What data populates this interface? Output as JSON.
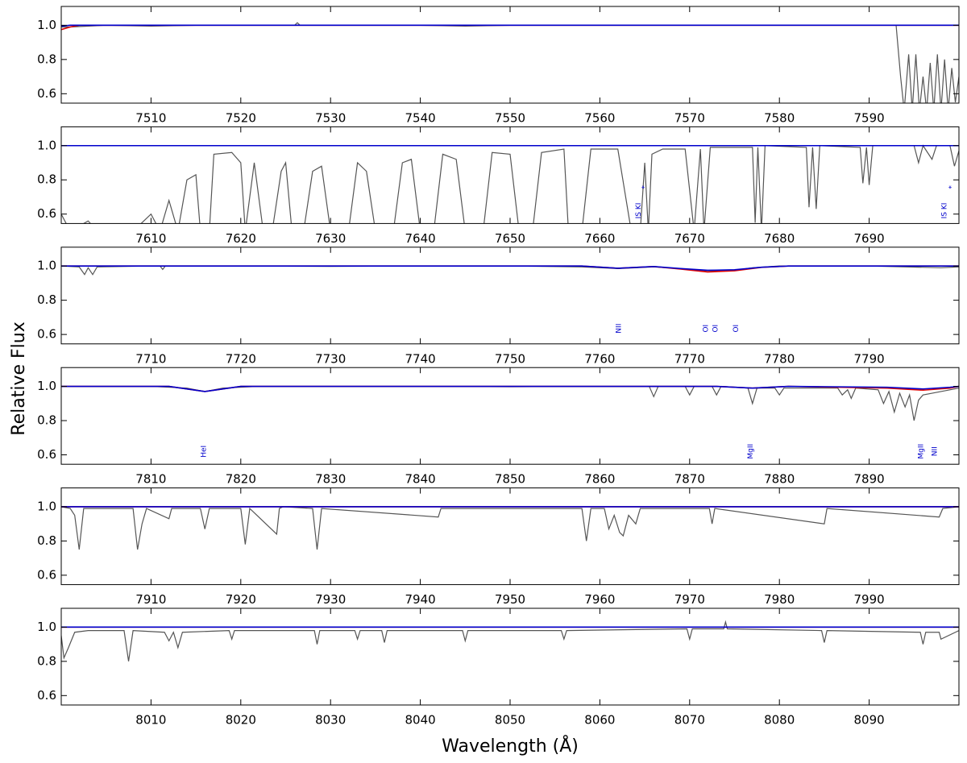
{
  "figure": {
    "xlabel": "Wavelength (Å)",
    "ylabel": "Relative Flux"
  },
  "chart_data": [
    {
      "type": "line",
      "xlim": [
        7500,
        7600
      ],
      "ylim": [
        0.545,
        1.11
      ],
      "xticks": [
        7510,
        7520,
        7530,
        7540,
        7550,
        7560,
        7570,
        7580,
        7590
      ],
      "yticks": [
        0.6,
        0.8,
        {
          "value": 1,
          "label": "1.0"
        }
      ],
      "series": [
        {
          "color": "#555555",
          "x": [
            7500,
            7501,
            7505,
            7510,
            7515,
            7520,
            7525,
            7526,
            7526.3,
            7526.6,
            7530,
            7535,
            7540,
            7545,
            7550,
            7555,
            7560,
            7565,
            7570,
            7575,
            7580,
            7585,
            7590,
            7593,
            7593.5,
            7593.9,
            7594.4,
            7594.8,
            7595.2,
            7595.6,
            7596,
            7596.4,
            7596.8,
            7597.2,
            7597.6,
            7598,
            7598.4,
            7598.8,
            7599.2,
            7599.6,
            7600
          ],
          "values": [
            0.99,
            0.99,
            1,
            0.995,
            1,
            1,
            1,
            1,
            1.015,
            1,
            1,
            1,
            1,
            0.995,
            1,
            1,
            1,
            1,
            1,
            1,
            1,
            1,
            1,
            1,
            0.7,
            0.5,
            0.83,
            0.5,
            0.83,
            0.5,
            0.7,
            0.5,
            0.78,
            0.5,
            0.83,
            0.5,
            0.8,
            0.5,
            0.75,
            0.55,
            0.7
          ]
        },
        {
          "color": "#e00000",
          "x": [
            7500,
            7501,
            7502,
            7600
          ],
          "values": [
            0.975,
            0.99,
            1,
            1
          ]
        },
        {
          "color": "#0000cc",
          "x": [
            7500,
            7501,
            7600
          ],
          "values": [
            0.995,
            1,
            1
          ]
        }
      ],
      "annotations": []
    },
    {
      "type": "line",
      "xlim": [
        7600,
        7700
      ],
      "ylim": [
        0.545,
        1.11
      ],
      "xticks": [
        7610,
        7620,
        7630,
        7640,
        7650,
        7660,
        7670,
        7680,
        7690
      ],
      "yticks": [
        0.6,
        0.8,
        {
          "value": 1,
          "label": "1.0"
        }
      ],
      "series": [
        {
          "color": "#555555",
          "x": [
            7600,
            7601,
            7603,
            7604,
            7608,
            7610,
            7611,
            7612,
            7613,
            7614,
            7615,
            7615.5,
            7616.5,
            7617,
            7619,
            7620,
            7620.5,
            7621.5,
            7622.5,
            7623.5,
            7624.5,
            7625,
            7625.7,
            7627,
            7628,
            7629,
            7630,
            7632,
            7633,
            7634,
            7635,
            7637,
            7638,
            7639,
            7640,
            7641.5,
            7642.5,
            7644,
            7645,
            7647,
            7648,
            7650,
            7651,
            7652.5,
            7653.5,
            7656,
            7656.5,
            7658,
            7659,
            7662,
            7663.5,
            7664.5,
            7665,
            7665.4,
            7665.8,
            7667,
            7669.5,
            7670.5,
            7671.2,
            7671.6,
            7672.3,
            7677,
            7677.3,
            7677.6,
            7678,
            7678.4,
            7683,
            7683.3,
            7683.7,
            7684.1,
            7684.5,
            7689,
            7689.3,
            7689.7,
            7690,
            7690.4,
            7695,
            7695.5,
            7696,
            7697,
            7697.5,
            7699,
            7699.5,
            7700
          ],
          "values": [
            0.6,
            0.5,
            0.56,
            0.5,
            0.5,
            0.6,
            0.5,
            0.68,
            0.5,
            0.8,
            0.83,
            0.5,
            0.5,
            0.95,
            0.96,
            0.9,
            0.5,
            0.9,
            0.5,
            0.5,
            0.85,
            0.9,
            0.5,
            0.5,
            0.85,
            0.88,
            0.5,
            0.5,
            0.9,
            0.85,
            0.5,
            0.5,
            0.9,
            0.92,
            0.5,
            0.5,
            0.95,
            0.92,
            0.5,
            0.5,
            0.96,
            0.95,
            0.5,
            0.5,
            0.96,
            0.98,
            0.5,
            0.5,
            0.98,
            0.98,
            0.5,
            0.5,
            0.9,
            0.5,
            0.95,
            0.98,
            0.98,
            0.5,
            0.98,
            0.5,
            0.99,
            0.99,
            0.55,
            0.99,
            0.5,
            1,
            0.99,
            0.64,
            0.99,
            0.63,
            1,
            0.99,
            0.78,
            0.99,
            0.77,
            1,
            1,
            0.9,
            1,
            0.92,
            1,
            1,
            0.88,
            0.97
          ]
        },
        {
          "color": "#e00000",
          "x": [
            7600,
            7700
          ],
          "values": [
            1,
            1
          ]
        },
        {
          "color": "#0000cc",
          "x": [
            7600,
            7700
          ],
          "values": [
            1,
            1
          ]
        }
      ],
      "annotations": [
        {
          "text": "IS KI",
          "x": 7664.3,
          "y": 0.62
        },
        {
          "text": "*",
          "x": 7665.0,
          "y": 0.757
        },
        {
          "text": "IS KI",
          "x": 7698.4,
          "y": 0.62
        },
        {
          "text": "*",
          "x": 7699.2,
          "y": 0.757
        }
      ]
    },
    {
      "type": "line",
      "xlim": [
        7700,
        7800
      ],
      "ylim": [
        0.545,
        1.11
      ],
      "xticks": [
        7710,
        7720,
        7730,
        7740,
        7750,
        7760,
        7770,
        7780,
        7790
      ],
      "yticks": [
        0.6,
        0.8,
        {
          "value": 1,
          "label": "1.0"
        }
      ],
      "series": [
        {
          "color": "#555555",
          "x": [
            7700,
            7702,
            7702.6,
            7703,
            7703.5,
            7704,
            7710,
            7711,
            7711.3,
            7711.6,
            7720,
            7730,
            7740,
            7750,
            7758,
            7762,
            7766,
            7769,
            7771,
            7773,
            7775,
            7777,
            7780,
            7790,
            7798,
            7800
          ],
          "values": [
            1,
            0.995,
            0.95,
            0.99,
            0.95,
            0.995,
            1,
            1,
            0.98,
            1,
            1,
            0.998,
            1,
            1,
            0.995,
            0.985,
            0.995,
            0.985,
            0.975,
            0.97,
            0.975,
            0.99,
            1,
            1,
            0.99,
            0.995
          ]
        },
        {
          "color": "#e00000",
          "x": [
            7700,
            7758,
            7762,
            7766,
            7769,
            7772,
            7775,
            7778,
            7781,
            7800
          ],
          "values": [
            1,
            1,
            0.987,
            0.997,
            0.982,
            0.965,
            0.972,
            0.992,
            1,
            1
          ]
        },
        {
          "color": "#0000cc",
          "x": [
            7700,
            7758,
            7762,
            7766,
            7769,
            7772,
            7775,
            7778,
            7781,
            7800
          ],
          "values": [
            1,
            1,
            0.987,
            0.997,
            0.985,
            0.975,
            0.978,
            0.993,
            1,
            1
          ]
        }
      ],
      "annotations": [
        {
          "text": "NII",
          "x": 7762.1,
          "y": 0.635
        },
        {
          "text": "OI",
          "x": 7771.8,
          "y": 0.635
        },
        {
          "text": "OI",
          "x": 7772.9,
          "y": 0.635
        },
        {
          "text": "OI",
          "x": 7775.2,
          "y": 0.635
        }
      ]
    },
    {
      "type": "line",
      "xlim": [
        7800,
        7900
      ],
      "ylim": [
        0.545,
        1.11
      ],
      "xticks": [
        7810,
        7820,
        7830,
        7840,
        7850,
        7860,
        7870,
        7880,
        7890
      ],
      "yticks": [
        0.6,
        0.8,
        {
          "value": 1,
          "label": "1.0"
        }
      ],
      "series": [
        {
          "color": "#555555",
          "x": [
            7800,
            7810,
            7814,
            7816,
            7818,
            7822,
            7830,
            7840,
            7850,
            7860,
            7865.5,
            7866,
            7866.5,
            7869.5,
            7870,
            7870.5,
            7872.5,
            7873,
            7873.5,
            7876.5,
            7877,
            7877.5,
            7879.5,
            7880,
            7880.5,
            7886.5,
            7887,
            7887.6,
            7888,
            7888.5,
            7891,
            7891.6,
            7892.2,
            7892.8,
            7893.4,
            7894,
            7894.5,
            7895,
            7895.5,
            7896,
            7897,
            7900
          ],
          "values": [
            1,
            1,
            0.99,
            0.97,
            0.99,
            1,
            1,
            1,
            0.998,
            1,
            1,
            0.94,
            1,
            1,
            0.95,
            1,
            1,
            0.95,
            1,
            0.99,
            0.9,
            0.99,
            0.99,
            0.95,
            0.99,
            0.99,
            0.95,
            0.98,
            0.93,
            0.99,
            0.98,
            0.9,
            0.97,
            0.85,
            0.96,
            0.88,
            0.95,
            0.8,
            0.92,
            0.95,
            0.96,
            0.99
          ]
        },
        {
          "color": "#e00000",
          "x": [
            7800,
            7812,
            7816,
            7820,
            7873,
            7877,
            7881,
            7892,
            7896,
            7899,
            7900
          ],
          "values": [
            1,
            1,
            0.97,
            1,
            1,
            0.99,
            1,
            0.99,
            0.978,
            0.99,
            1
          ]
        },
        {
          "color": "#0000cc",
          "x": [
            7800,
            7812,
            7816,
            7820,
            7873,
            7877,
            7881,
            7892,
            7896,
            7899,
            7900
          ],
          "values": [
            1,
            1,
            0.97,
            1,
            1,
            0.99,
            1,
            0.995,
            0.985,
            0.995,
            1
          ]
        }
      ],
      "annotations": [
        {
          "text": "HeI",
          "x": 7815.9,
          "y": 0.62
        },
        {
          "text": "MgII",
          "x": 7876.8,
          "y": 0.62
        },
        {
          "text": "MgII",
          "x": 7895.8,
          "y": 0.62
        },
        {
          "text": "NII",
          "x": 7897.3,
          "y": 0.62
        }
      ]
    },
    {
      "type": "line",
      "xlim": [
        7900,
        8000
      ],
      "ylim": [
        0.545,
        1.11
      ],
      "xticks": [
        7910,
        7920,
        7930,
        7940,
        7950,
        7960,
        7970,
        7980,
        7990
      ],
      "yticks": [
        0.6,
        0.8,
        {
          "value": 1,
          "label": "1.0"
        }
      ],
      "series": [
        {
          "color": "#555555",
          "x": [
            7900,
            7901,
            7901.5,
            7902,
            7902.5,
            7908,
            7908.5,
            7909,
            7909.5,
            7912,
            7912.3,
            7915.5,
            7916,
            7916.5,
            7920,
            7920.5,
            7921,
            7924,
            7924.3,
            7924.7,
            7928,
            7928.5,
            7929,
            7942,
            7942.3,
            7958,
            7958.5,
            7959,
            7960.5,
            7961,
            7961.6,
            7962.2,
            7962.6,
            7963.2,
            7964,
            7964.5,
            7972.2,
            7972.5,
            7972.8,
            7985,
            7985.3,
            7997.8,
            7998.2,
            8000
          ],
          "values": [
            1,
            0.99,
            0.95,
            0.75,
            0.99,
            0.99,
            0.75,
            0.9,
            0.99,
            0.93,
            0.99,
            0.99,
            0.87,
            0.99,
            0.99,
            0.78,
            0.99,
            0.84,
            0.99,
            1,
            0.99,
            0.75,
            0.99,
            0.94,
            0.99,
            0.99,
            0.8,
            0.99,
            0.99,
            0.87,
            0.95,
            0.85,
            0.83,
            0.95,
            0.9,
            0.99,
            0.99,
            0.9,
            0.99,
            0.9,
            0.99,
            0.94,
            0.99,
            1
          ]
        },
        {
          "color": "#e00000",
          "x": [
            7900,
            8000
          ],
          "values": [
            1,
            1
          ]
        },
        {
          "color": "#0000cc",
          "x": [
            7900,
            8000
          ],
          "values": [
            1,
            1
          ]
        }
      ],
      "annotations": []
    },
    {
      "type": "line",
      "xlim": [
        8000,
        8100
      ],
      "ylim": [
        0.545,
        1.11
      ],
      "xticks": [
        8010,
        8020,
        8030,
        8040,
        8050,
        8060,
        8070,
        8080,
        8090
      ],
      "yticks": [
        0.6,
        0.8,
        {
          "value": 1,
          "label": "1.0"
        }
      ],
      "series": [
        {
          "color": "#555555",
          "x": [
            8000,
            8000.3,
            8000.8,
            8001.5,
            8003,
            8007,
            8007.5,
            8008,
            8011.5,
            8012,
            8012.5,
            8013,
            8013.5,
            8018.7,
            8019,
            8019.3,
            8028.2,
            8028.5,
            8028.8,
            8032.7,
            8033,
            8033.3,
            8035.7,
            8036,
            8036.3,
            8044.7,
            8045,
            8045.3,
            8055.7,
            8056,
            8056.3,
            8069.7,
            8070,
            8070.3,
            8073.8,
            8074,
            8074.2,
            8084.7,
            8085,
            8085.3,
            8095.7,
            8096,
            8096.3,
            8097.8,
            8098,
            8100
          ],
          "values": [
            0.95,
            0.82,
            0.88,
            0.97,
            0.98,
            0.98,
            0.8,
            0.98,
            0.97,
            0.92,
            0.97,
            0.88,
            0.97,
            0.98,
            0.93,
            0.98,
            0.98,
            0.9,
            0.98,
            0.98,
            0.93,
            0.98,
            0.98,
            0.91,
            0.98,
            0.98,
            0.92,
            0.98,
            0.98,
            0.93,
            0.98,
            0.99,
            0.93,
            0.99,
            0.99,
            1.03,
            0.99,
            0.98,
            0.91,
            0.98,
            0.97,
            0.9,
            0.97,
            0.97,
            0.93,
            0.98
          ]
        },
        {
          "color": "#e00000",
          "x": [
            8000,
            8100
          ],
          "values": [
            1,
            1
          ]
        },
        {
          "color": "#0000cc",
          "x": [
            8000,
            8100
          ],
          "values": [
            1,
            1
          ]
        }
      ],
      "annotations": []
    }
  ]
}
